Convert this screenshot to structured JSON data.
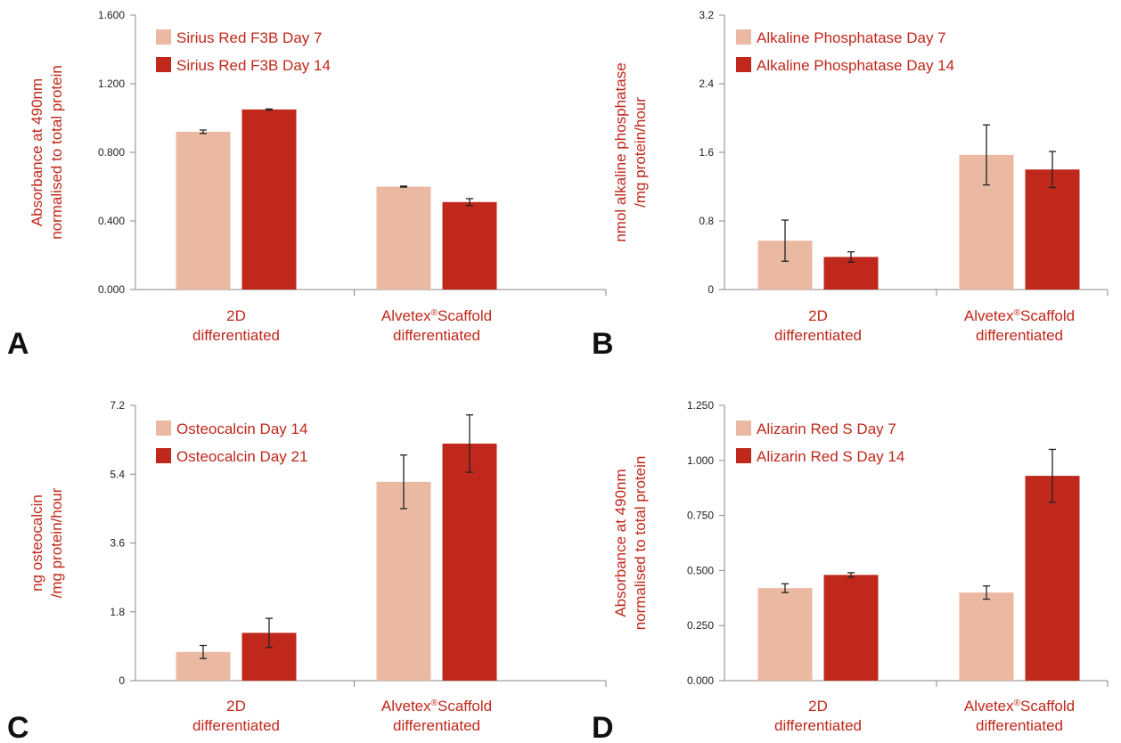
{
  "colors": {
    "day_early": "#ebb9a2",
    "day_late": "#c0281b",
    "text": "#c0281b"
  },
  "chart_data": [
    {
      "panel": "A",
      "type": "bar",
      "categories": [
        "2D\ndifferentiated",
        "Alvetex®Scaffold\ndifferentiated"
      ],
      "ylabel": [
        "Absorbance at 490nm",
        "normalised to total protein"
      ],
      "ylim": [
        0,
        1.6
      ],
      "yticks": [
        "0.000",
        "0.400",
        "0.800",
        "1.200",
        "1.600"
      ],
      "series": [
        {
          "name": "Sirius Red F3B Day 7",
          "values": [
            0.92,
            0.6
          ],
          "errors": [
            0.01,
            0.003
          ]
        },
        {
          "name": "Sirius Red F3B Day 14",
          "values": [
            1.05,
            0.51
          ],
          "errors": [
            0.003,
            0.02
          ]
        }
      ],
      "legend": "top-left"
    },
    {
      "panel": "B",
      "type": "bar",
      "categories": [
        "2D\ndifferentiated",
        "Alvetex®Scaffold\ndifferentiated"
      ],
      "ylabel": [
        "nmol alkaline phosphatase",
        "/mg protein/hour"
      ],
      "ylim": [
        0,
        3.2
      ],
      "yticks": [
        "0",
        "0.8",
        "1.6",
        "2.4",
        "3.2"
      ],
      "series": [
        {
          "name": "Alkaline Phosphatase Day 7",
          "values": [
            0.57,
            1.57
          ],
          "errors": [
            0.24,
            0.35
          ]
        },
        {
          "name": "Alkaline Phosphatase Day 14",
          "values": [
            0.38,
            1.4
          ],
          "errors": [
            0.06,
            0.21
          ]
        }
      ],
      "legend": "top-left"
    },
    {
      "panel": "C",
      "type": "bar",
      "categories": [
        "2D\ndifferentiated",
        "Alvetex®Scaffold\ndifferentiated"
      ],
      "ylabel": [
        "ng osteocalcin",
        "/mg protein/hour"
      ],
      "ylim": [
        0,
        7.2
      ],
      "yticks": [
        "0",
        "1.8",
        "3.6",
        "5.4",
        "7.2"
      ],
      "series": [
        {
          "name": "Osteocalcin Day 14",
          "values": [
            0.75,
            5.2
          ],
          "errors": [
            0.17,
            0.7
          ]
        },
        {
          "name": "Osteocalcin Day 21",
          "values": [
            1.25,
            6.2
          ],
          "errors": [
            0.38,
            0.75
          ]
        }
      ],
      "legend": "top-left"
    },
    {
      "panel": "D",
      "type": "bar",
      "categories": [
        "2D\ndifferentiated",
        "Alvetex®Scaffold\ndifferentiated"
      ],
      "ylabel": [
        "Absorbance at 490nm",
        "normalised to total protein"
      ],
      "ylim": [
        0,
        1.25
      ],
      "yticks": [
        "0.000",
        "0.250",
        "0.500",
        "0.750",
        "1.000",
        "1.250"
      ],
      "series": [
        {
          "name": "Alizarin Red S Day 7",
          "values": [
            0.42,
            0.4
          ],
          "errors": [
            0.02,
            0.03
          ]
        },
        {
          "name": "Alizarin Red S Day 14",
          "values": [
            0.48,
            0.93
          ],
          "errors": [
            0.01,
            0.12
          ]
        }
      ],
      "legend": "top-left"
    }
  ]
}
